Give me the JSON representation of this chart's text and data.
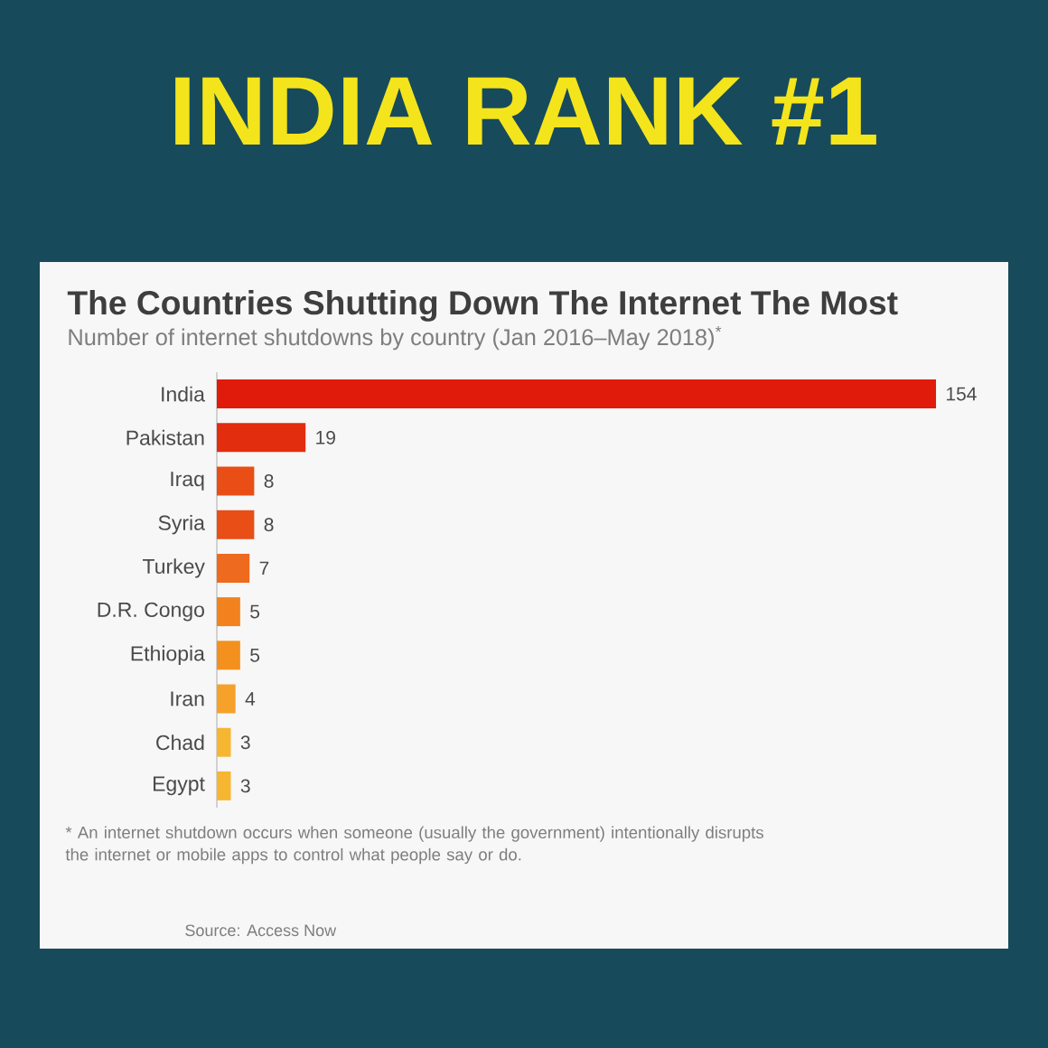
{
  "chart_data": {
    "type": "bar",
    "orientation": "horizontal",
    "title": "The Countries Shutting Down The Internet The Most",
    "subtitle": "Number of internet shutdowns by country (Jan 2016–May 2018)$^{*}$",
    "categories": [
      "India",
      "Pakistan",
      "Iraq",
      "Syria",
      "Turkey",
      "D.R. Congo",
      "Ethiopia",
      "Iran",
      "Chad",
      "Egypt"
    ],
    "values": [
      154,
      19,
      8,
      8,
      7,
      5,
      5,
      4,
      3,
      3
    ],
    "colors": [
      "#e01b0c",
      "#e22d0e",
      "#e84e16",
      "#e84e16",
      "#ee6a1e",
      "#f2821e",
      "#f4901e",
      "#f5a12a",
      "#f6b631",
      "#f6b631"
    ],
    "xlim": [
      0,
      154
    ],
    "tick_labels": "y",
    "data_labels": true,
    "annotations": [
      "INDIA RANK #1",
      "* An internet shutdown occurs when someone (usually the government) intentionally disrupts the internet or mobile apps to control what people say or do.",
      "Source: Access Now"
    ]
  }
}
